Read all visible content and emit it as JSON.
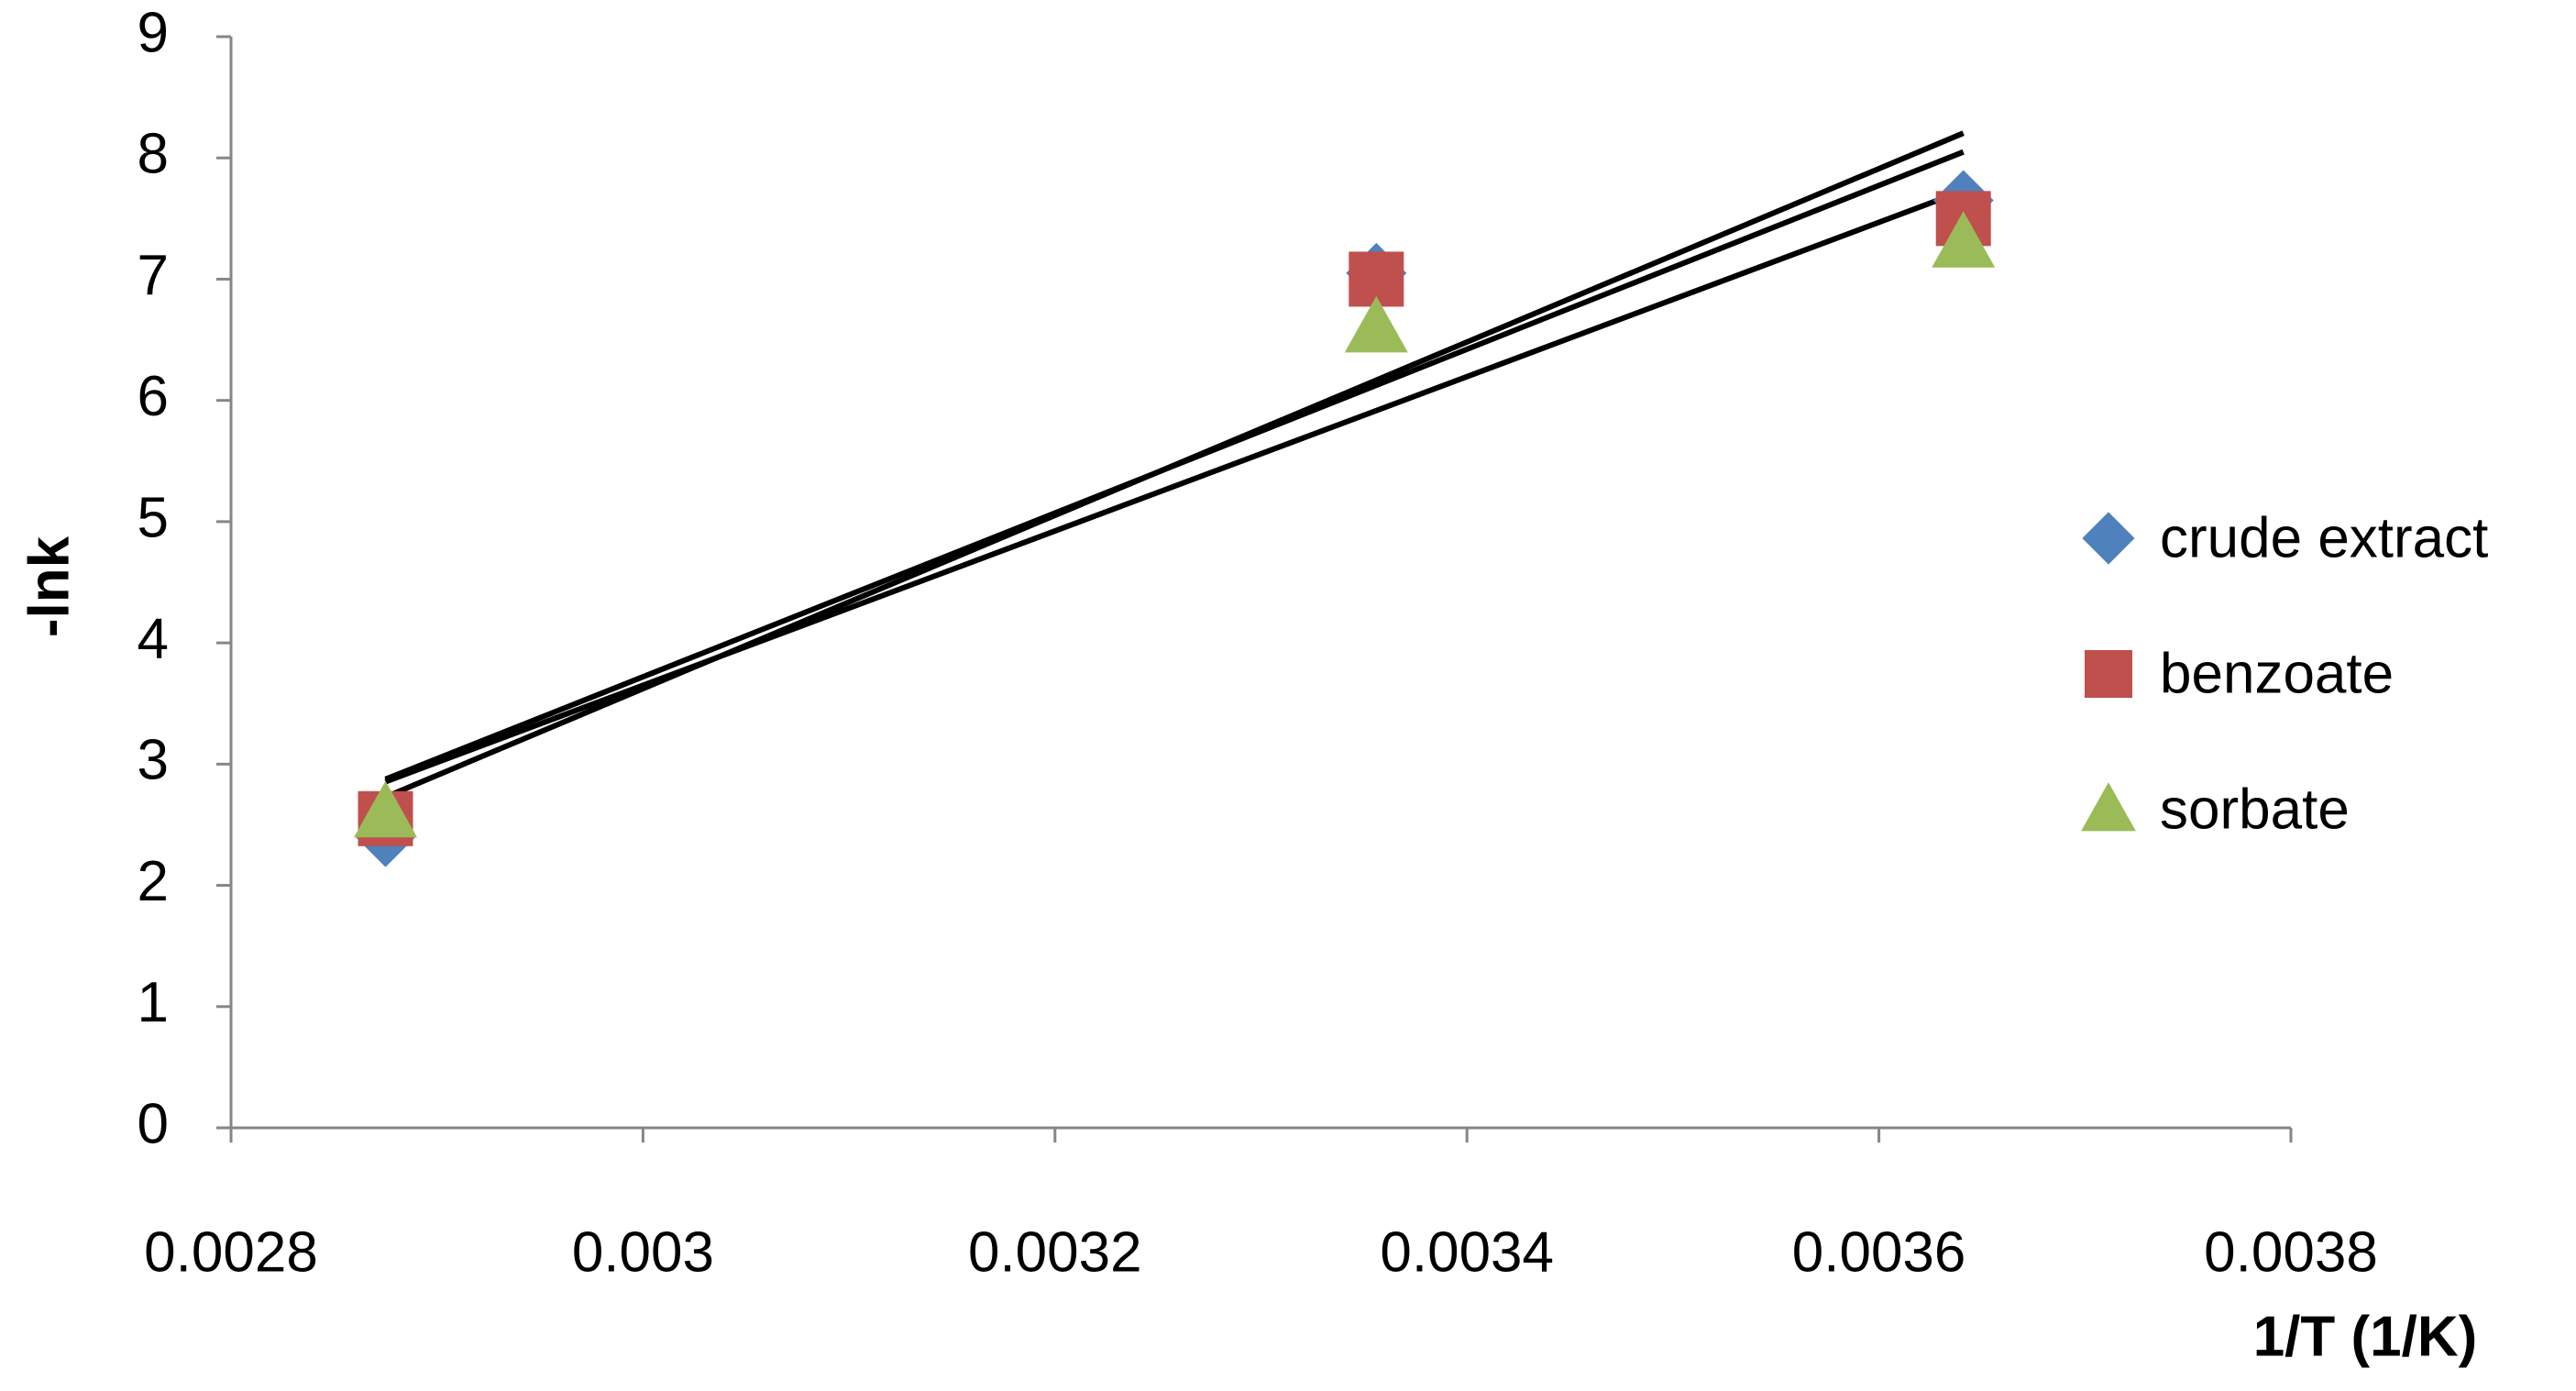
{
  "chart_data": {
    "type": "scatter",
    "x_label": "1/T (1/K)",
    "y_label": "-lnk",
    "x": [
      0.002875,
      0.003356,
      0.003641
    ],
    "series": [
      {
        "name": "crude extract",
        "color": "#4f81bd",
        "marker": "diamond",
        "values": [
          2.4,
          7.05,
          7.65
        ]
      },
      {
        "name": "benzoate",
        "color": "#c0504d",
        "marker": "square",
        "values": [
          2.55,
          7.0,
          7.5
        ]
      },
      {
        "name": "sorbate",
        "color": "#9bbb59",
        "marker": "triangle",
        "values": [
          2.6,
          6.6,
          7.3
        ]
      }
    ],
    "trendline": "linear",
    "trendline_color": "#000000",
    "xlim": [
      0.0028,
      0.0038
    ],
    "xticks": [
      0.0028,
      0.003,
      0.0032,
      0.0034,
      0.0036,
      0.0038
    ],
    "ylim": [
      0,
      9
    ],
    "yticks": [
      0,
      1,
      2,
      3,
      4,
      5,
      6,
      7,
      8,
      9
    ],
    "grid": false,
    "legend": "right"
  }
}
